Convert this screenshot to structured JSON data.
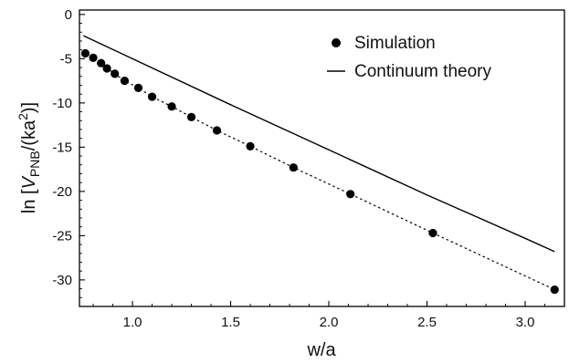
{
  "chart_data": {
    "type": "scatter",
    "title": "",
    "xlabel": "w/a",
    "ylabel": {
      "prefix": "ln [",
      "var": "V",
      "sub": "PNB",
      "mid": "/(ka",
      "sup": "2",
      "suffix": ")]"
    },
    "xlim": [
      0.73,
      3.2
    ],
    "ylim": [
      -33,
      0.5
    ],
    "x_ticks": [
      1.0,
      1.5,
      2.0,
      2.5,
      3.0
    ],
    "x_tick_labels": [
      "1.0",
      "1.5",
      "2.0",
      "2.5",
      "3.0"
    ],
    "y_ticks": [
      0,
      -5,
      -10,
      -15,
      -20,
      -25,
      -30
    ],
    "y_tick_labels": [
      "0",
      "-5",
      "-10",
      "-15",
      "-20",
      "-25",
      "-30"
    ],
    "grid": false,
    "legend_position": "top-right",
    "series": [
      {
        "name": "Simulation",
        "kind": "points-with-dotted-fit",
        "color": "#000000",
        "x": [
          0.76,
          0.8,
          0.84,
          0.87,
          0.91,
          0.96,
          1.03,
          1.1,
          1.2,
          1.3,
          1.43,
          1.6,
          1.82,
          2.11,
          2.53,
          3.15
        ],
        "y": [
          -4.4,
          -4.9,
          -5.5,
          -6.1,
          -6.7,
          -7.5,
          -8.3,
          -9.3,
          -10.4,
          -11.6,
          -13.1,
          -14.9,
          -17.3,
          -20.3,
          -24.7,
          -31.1
        ]
      },
      {
        "name": "Continuum theory",
        "kind": "line",
        "color": "#000000",
        "x": [
          0.75,
          1.0,
          1.5,
          2.0,
          2.5,
          3.0,
          3.15
        ],
        "y": [
          -2.4,
          -5.0,
          -10.2,
          -15.3,
          -20.4,
          -25.3,
          -26.8
        ]
      }
    ]
  }
}
